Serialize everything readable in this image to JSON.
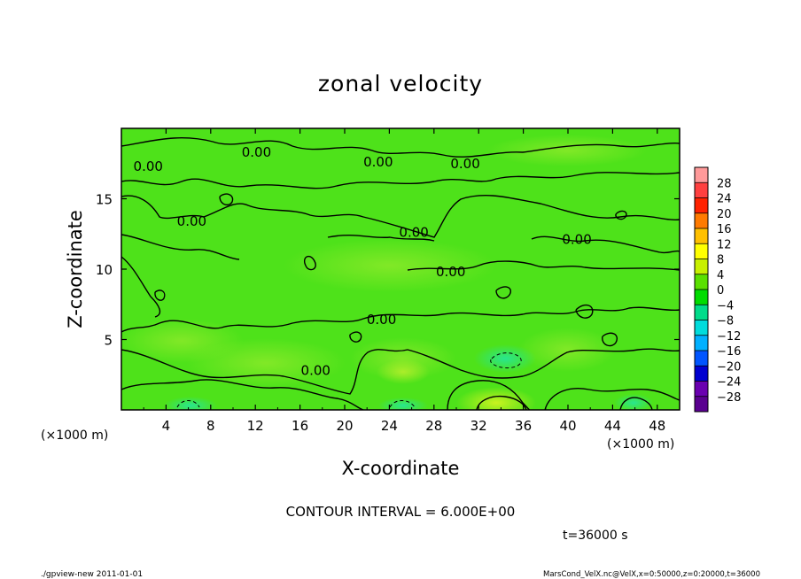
{
  "chart_data": {
    "type": "heatmap",
    "title": "zonal velocity",
    "xlabel": "X-coordinate",
    "ylabel": "Z-coordinate",
    "x_unit_left": "(×1000 m)",
    "x_unit_right": "(×1000 m)",
    "xlim": [
      0,
      50
    ],
    "ylim": [
      0,
      20
    ],
    "x_ticks": [
      4,
      8,
      12,
      16,
      20,
      24,
      28,
      32,
      36,
      40,
      44,
      48
    ],
    "y_ticks": [
      5,
      10,
      15
    ],
    "colorbar": {
      "levels": [
        28,
        24,
        20,
        16,
        12,
        8,
        4,
        0,
        -4,
        -8,
        -12,
        -16,
        -20,
        -24,
        -28
      ],
      "level_labels": [
        "28",
        "24",
        "20",
        "16",
        "12",
        "8",
        "4",
        "0",
        "−4",
        "−8",
        "−12",
        "−16",
        "−20",
        "−24",
        "−28"
      ],
      "colors": [
        "#ff9a9a",
        "#ff4040",
        "#ff2200",
        "#ff7a00",
        "#ffc000",
        "#ffff00",
        "#c8f000",
        "#5ae000",
        "#00dc00",
        "#00dc8a",
        "#00dcdc",
        "#00b0ff",
        "#0055ff",
        "#0000d0",
        "#6a00b0",
        "#5a0090"
      ]
    },
    "contour_interval": "CONTOUR INTERVAL = 6.000E+00",
    "contour_labels": [
      {
        "text": "0.00",
        "x": 2.4,
        "z": 17.3
      },
      {
        "text": "0.00",
        "x": 12.1,
        "z": 18.3
      },
      {
        "text": "0.00",
        "x": 23.0,
        "z": 17.6
      },
      {
        "text": "0.00",
        "x": 30.8,
        "z": 17.5
      },
      {
        "text": "0.00",
        "x": 6.3,
        "z": 13.4
      },
      {
        "text": "0.00",
        "x": 26.2,
        "z": 12.6
      },
      {
        "text": "0.00",
        "x": 40.8,
        "z": 12.1
      },
      {
        "text": "0.00",
        "x": 29.5,
        "z": 9.8
      },
      {
        "text": "0.00",
        "x": 23.3,
        "z": 6.4
      },
      {
        "text": "0.00",
        "x": 17.4,
        "z": 2.8
      }
    ],
    "time": "t=36000 s"
  },
  "footer": {
    "left": "./gpview-new  2011-01-01",
    "right": "MarsCond_VelX.nc@VelX,x=0:50000,z=0:20000,t=36000"
  }
}
